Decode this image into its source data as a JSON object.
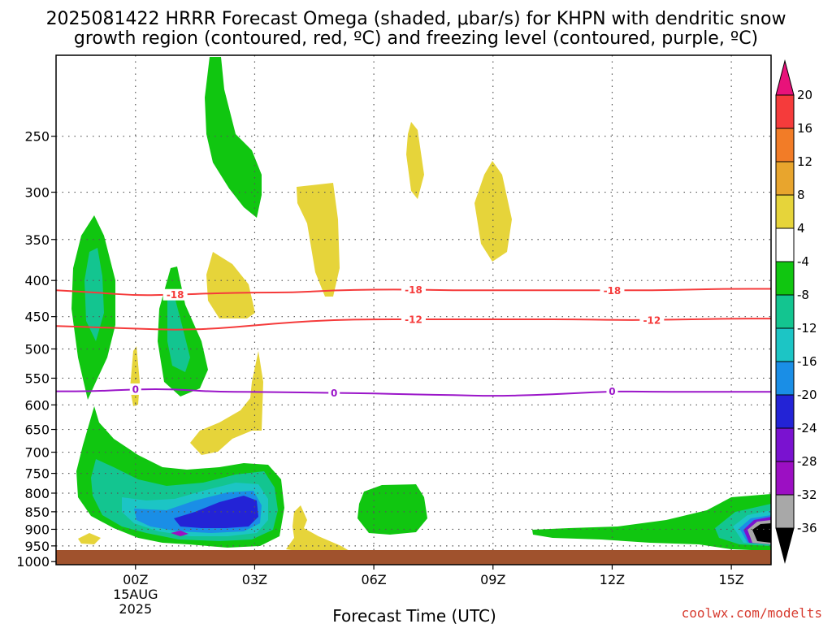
{
  "title": {
    "line1": "2025081422 HRRR Forecast Omega (shaded, μbar/s) for KHPN with dendritic snow",
    "line2": "growth region (contoured, red, ºC) and freezing level (contoured, purple, ºC)"
  },
  "xaxis_title": "Forecast Time (UTC)",
  "credit": "coolwx.com/modelts",
  "chart_data": {
    "type": "heatmap",
    "x_ticks": [
      {
        "hour": 0,
        "label": "00Z",
        "sub1": "15AUG",
        "sub2": "2025"
      },
      {
        "hour": 3,
        "label": "03Z"
      },
      {
        "hour": 6,
        "label": "06Z"
      },
      {
        "hour": 9,
        "label": "09Z"
      },
      {
        "hour": 12,
        "label": "12Z"
      },
      {
        "hour": 15,
        "label": "15Z"
      }
    ],
    "xlim": [
      -2,
      16
    ],
    "y_ticks": [
      250,
      300,
      350,
      400,
      450,
      500,
      550,
      600,
      650,
      700,
      750,
      800,
      850,
      900,
      950,
      1000
    ],
    "ylim_hPa": [
      190,
      1010
    ],
    "y_scale": "log-pressure",
    "grid": true,
    "colorbar": {
      "levels": [
        "20",
        "16",
        "12",
        "8",
        "4",
        "-4",
        "-8",
        "-12",
        "-16",
        "-20",
        "-24",
        "-28",
        "-32",
        "-36"
      ],
      "colors": [
        "#e8127a",
        "#f53b3b",
        "#f27c27",
        "#e8a52d",
        "#e6d43a",
        "#ffffff",
        "#10c610",
        "#13c590",
        "#1cc5c5",
        "#1a8ee6",
        "#2323d6",
        "#7a12d0",
        "#9c0fc3",
        "#a8a8a8",
        "#000000"
      ]
    },
    "contours": [
      {
        "name": "-18",
        "color": "#f53b3b",
        "label": "-18",
        "points": [
          [
            -2,
            413
          ],
          [
            -1,
            416
          ],
          [
            0,
            420
          ],
          [
            1,
            419
          ],
          [
            2,
            417
          ],
          [
            3,
            416
          ],
          [
            4,
            416
          ],
          [
            5,
            413
          ],
          [
            6,
            412
          ],
          [
            7,
            412
          ],
          [
            8,
            413
          ],
          [
            9,
            413
          ],
          [
            10,
            413
          ],
          [
            11,
            413
          ],
          [
            12,
            413
          ],
          [
            13,
            413
          ],
          [
            14,
            412
          ],
          [
            15,
            411
          ],
          [
            16,
            411
          ]
        ],
        "label_at": [
          1,
          7,
          12
        ]
      },
      {
        "name": "-12",
        "color": "#f53b3b",
        "label": "-12",
        "points": [
          [
            -2,
            464
          ],
          [
            -1,
            466
          ],
          [
            0,
            468
          ],
          [
            1,
            470
          ],
          [
            2,
            468
          ],
          [
            3,
            463
          ],
          [
            4,
            458
          ],
          [
            5,
            455
          ],
          [
            6,
            454
          ],
          [
            7,
            454
          ],
          [
            8,
            454
          ],
          [
            9,
            454
          ],
          [
            10,
            454
          ],
          [
            11,
            454
          ],
          [
            12,
            455
          ],
          [
            13,
            455
          ],
          [
            14,
            454
          ],
          [
            15,
            453
          ],
          [
            16,
            453
          ]
        ],
        "label_at": [
          7,
          13
        ]
      },
      {
        "name": "0",
        "color": "#9b16c9",
        "label": "0",
        "points": [
          [
            -2,
            574
          ],
          [
            -1,
            574
          ],
          [
            0,
            570
          ],
          [
            1,
            570
          ],
          [
            2,
            575
          ],
          [
            3,
            575
          ],
          [
            4,
            576
          ],
          [
            5,
            577
          ],
          [
            6,
            578
          ],
          [
            7,
            580
          ],
          [
            8,
            581
          ],
          [
            9,
            583
          ],
          [
            10,
            581
          ],
          [
            11,
            578
          ],
          [
            12,
            574
          ],
          [
            13,
            575
          ],
          [
            14,
            575
          ],
          [
            15,
            575
          ],
          [
            16,
            575
          ]
        ],
        "label_at": [
          0,
          5,
          12
        ]
      }
    ]
  }
}
